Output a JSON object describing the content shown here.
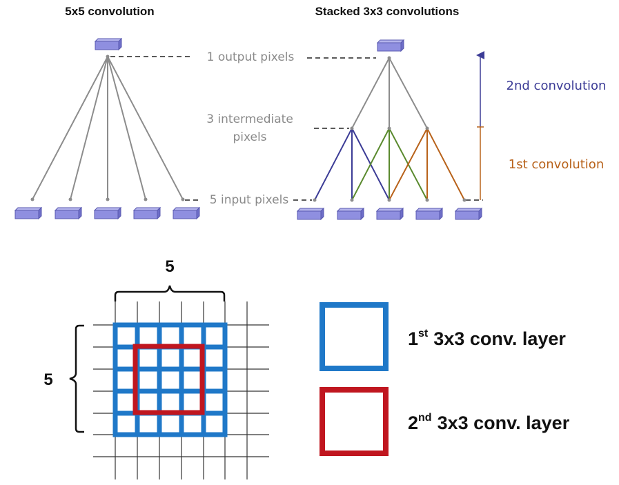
{
  "top": {
    "left_title": "5x5 convolution",
    "right_title": "Stacked 3x3 convolutions",
    "output_label": "1 output pixels",
    "intermediate_label_line1": "3 intermediate",
    "intermediate_label_line2": "pixels",
    "input_label": "5 input pixels",
    "conv2_label": "2nd convolution",
    "conv1_label": "1st convolution"
  },
  "bottom": {
    "width_label": "5",
    "height_label": "5",
    "legend": [
      {
        "num": "1",
        "sup": "st",
        "text": "3x3 conv. layer",
        "color": "#1f78c8"
      },
      {
        "num": "2",
        "sup": "nd",
        "text": "3x3 conv. layer",
        "color": "#c0161f"
      }
    ]
  },
  "colors": {
    "pixel_block": "#8f8fe0",
    "connector": "#8c8c8c",
    "conv1_blue": "#3c3c96",
    "conv1_green": "#5a8a2e",
    "conv1_orange": "#b8621a",
    "conv2_label": "#3c3c96",
    "conv1_label": "#b8621a",
    "grid_line": "#333333"
  }
}
